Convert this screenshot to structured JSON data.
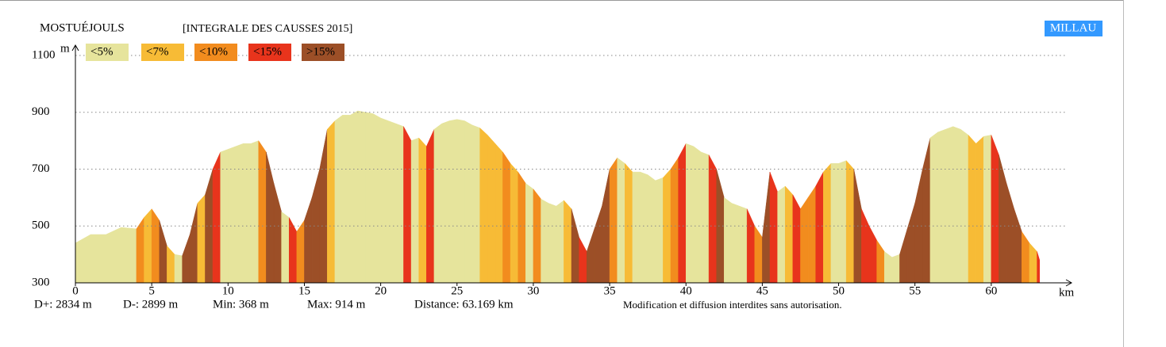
{
  "chart_data": {
    "type": "area",
    "title": "MOSTUÉJOULS",
    "subtitle": "[INTEGRALE DES CAUSSES 2015]",
    "end_label": "MILLAU",
    "x_label": "km",
    "y_label": "m",
    "legend": {
      "categories": [
        "<5%",
        "<7%",
        "<10%",
        "<15%",
        ">15%"
      ],
      "colors": [
        "#e6e49c",
        "#f7bb36",
        "#f28c1e",
        "#e8341c",
        "#9c4f27"
      ]
    },
    "x": [
      0,
      1,
      2,
      3,
      4,
      4.5,
      5,
      5.5,
      6,
      6.5,
      7,
      7.5,
      8,
      8.5,
      9,
      9.5,
      10,
      10.5,
      11,
      11.5,
      12,
      12.5,
      13,
      13.5,
      14,
      14.5,
      15,
      15.5,
      16,
      16.5,
      17,
      17.5,
      18,
      18.5,
      19,
      19.5,
      20,
      20.5,
      21,
      21.5,
      22,
      22.5,
      23,
      23.5,
      24,
      24.5,
      25,
      25.5,
      26,
      26.5,
      27,
      27.5,
      28,
      28.5,
      29,
      29.5,
      30,
      30.5,
      31,
      31.5,
      32,
      32.5,
      33,
      33.5,
      34,
      34.5,
      35,
      35.5,
      36,
      36.5,
      37,
      37.5,
      38,
      38.5,
      39,
      39.5,
      40,
      40.5,
      41,
      41.5,
      42,
      42.5,
      43,
      43.5,
      44,
      44.5,
      45,
      45.5,
      46,
      46.5,
      47,
      47.5,
      48,
      48.5,
      49,
      49.5,
      50,
      50.5,
      51,
      51.5,
      52,
      52.5,
      53,
      53.5,
      54,
      54.5,
      55,
      55.5,
      56,
      56.5,
      57,
      57.5,
      58,
      58.5,
      59,
      59.5,
      60,
      60.5,
      61,
      61.5,
      62,
      62.5,
      63,
      63.169
    ],
    "series": [
      {
        "values": [
          440,
          470,
          470,
          495,
          490,
          530,
          560,
          520,
          430,
          400,
          395,
          470,
          580,
          610,
          700,
          760,
          770,
          780,
          790,
          790,
          800,
          760,
          650,
          550,
          530,
          480,
          520,
          600,
          700,
          840,
          870,
          890,
          890,
          905,
          900,
          895,
          880,
          870,
          860,
          850,
          800,
          810,
          780,
          840,
          860,
          870,
          875,
          870,
          855,
          845,
          820,
          790,
          760,
          720,
          690,
          650,
          630,
          595,
          580,
          570,
          590,
          560,
          460,
          410,
          490,
          570,
          700,
          740,
          720,
          690,
          690,
          680,
          660,
          670,
          700,
          740,
          790,
          780,
          760,
          750,
          700,
          600,
          580,
          570,
          560,
          500,
          460,
          690,
          620,
          640,
          610,
          560,
          600,
          640,
          690,
          720,
          720,
          730,
          700,
          560,
          500,
          450,
          410,
          390,
          400,
          490,
          580,
          700,
          810,
          830,
          840,
          850,
          840,
          820,
          790,
          815,
          820,
          750,
          650,
          560,
          480,
          440,
          410,
          380
        ],
        "classes": [
          null,
          0,
          0,
          0,
          0,
          2,
          1,
          2,
          4,
          1,
          0,
          4,
          4,
          1,
          4,
          3,
          0,
          0,
          0,
          0,
          0,
          2,
          4,
          4,
          0,
          3,
          2,
          4,
          4,
          4,
          1,
          0,
          0,
          0,
          0,
          0,
          0,
          0,
          0,
          0,
          3,
          0,
          1,
          3,
          0,
          0,
          0,
          0,
          0,
          0,
          1,
          1,
          1,
          2,
          1,
          2,
          0,
          2,
          0,
          0,
          0,
          1,
          4,
          3,
          4,
          4,
          4,
          2,
          0,
          1,
          0,
          0,
          0,
          0,
          1,
          2,
          3,
          0,
          0,
          0,
          3,
          4,
          0,
          0,
          0,
          3,
          2,
          4,
          3,
          0,
          1,
          3,
          2,
          2,
          3,
          1,
          0,
          0,
          1,
          4,
          3,
          3,
          2,
          0,
          0,
          4,
          4,
          4,
          4,
          0,
          0,
          0,
          0,
          0,
          1,
          1,
          0,
          3,
          4,
          4,
          4,
          2,
          1,
          3
        ]
      }
    ],
    "xlim": [
      0,
      65
    ],
    "ylim": [
      300,
      1100
    ],
    "xticks": [
      0,
      5,
      10,
      15,
      20,
      25,
      30,
      35,
      40,
      45,
      50,
      55,
      60
    ],
    "yticks": [
      300,
      500,
      700,
      900,
      1100
    ],
    "grid": true,
    "stats": [
      "D+: 2834 m",
      "D-: 2899 m",
      "Min: 368 m",
      "Max: 914 m",
      "Distance: 63.169 km"
    ],
    "note": "Modification et diffusion interdites sans autorisation."
  }
}
